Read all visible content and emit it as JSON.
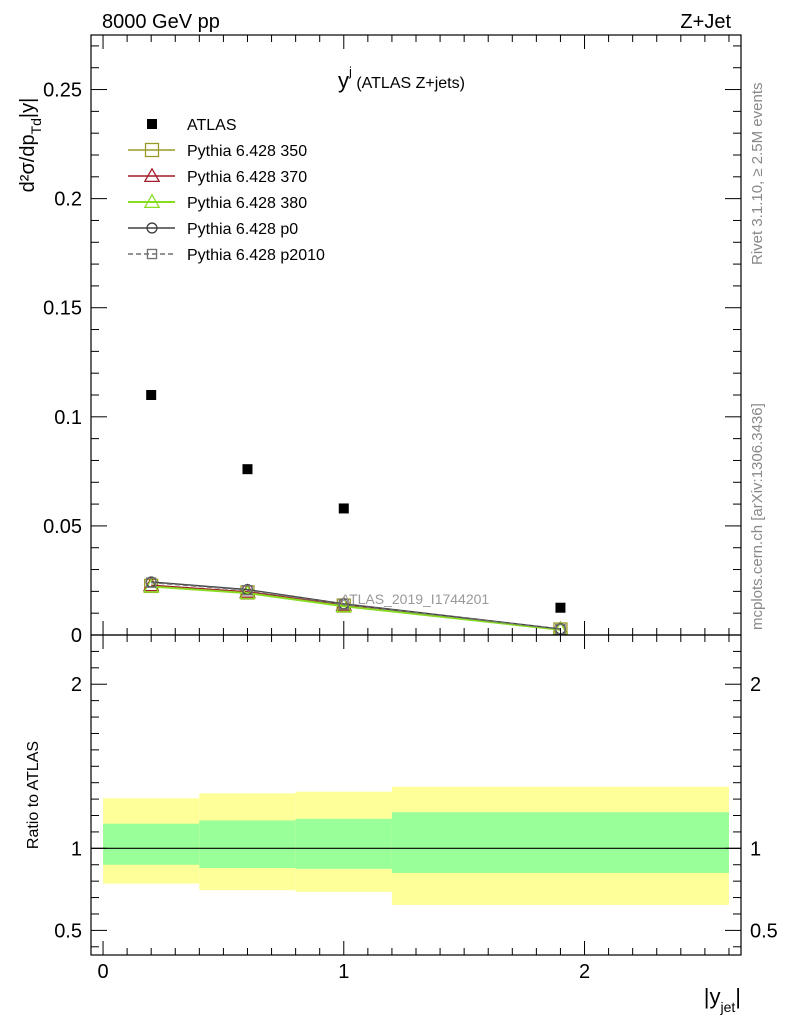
{
  "header": {
    "left": "8000 GeV pp",
    "right": "Z+Jet"
  },
  "side_labels": {
    "rivet": "Rivet 3.1.10, ≥ 2.5M events",
    "source": "mcplots.cern.ch [arXiv:1306.3436]"
  },
  "plot_title": {
    "main": "y",
    "sup": "j",
    "rest": " (ATLAS Z+jets)"
  },
  "watermark": "ATLAS_2019_I1744201",
  "axis_labels": {
    "y_main": "d²σ/dp",
    "y_sub": "Td",
    "y_tail": "|y|",
    "ratio_y": "Ratio to ATLAS",
    "x_main": "|y",
    "x_sub": "jet",
    "x_tail": "|"
  },
  "colors": {
    "data": "#000000",
    "p350": "#9a9a28",
    "p370": "#a01c28",
    "p380": "#88dd22",
    "p0": "#404040",
    "p2010": "#707070",
    "band_inner": "#99ff99",
    "band_outer": "#ffff99"
  },
  "chart_data": {
    "type": "scatter",
    "x_range": [
      -0.05,
      2.65
    ],
    "main_ylim": [
      0,
      0.275
    ],
    "ratio_ylim": [
      0.35,
      2.3
    ],
    "x_ticks": [
      0,
      1,
      2
    ],
    "x_tick_labels": [
      "0",
      "1",
      "2"
    ],
    "main_y_ticks": [
      0,
      0.05,
      0.1,
      0.15,
      0.2,
      0.25
    ],
    "main_y_tick_labels": [
      "0",
      "0.05",
      "0.1",
      "0.15",
      "0.2",
      "0.25"
    ],
    "ratio_y_ticks": [
      0.5,
      1,
      2
    ],
    "ratio_y_tick_labels": [
      "0.5",
      "1",
      "2"
    ],
    "bins": [
      {
        "lo": 0.0,
        "hi": 0.4,
        "x": 0.2
      },
      {
        "lo": 0.4,
        "hi": 0.8,
        "x": 0.6
      },
      {
        "lo": 0.8,
        "hi": 1.2,
        "x": 1.0
      },
      {
        "lo": 1.2,
        "hi": 2.6,
        "x": 1.9
      }
    ],
    "data": {
      "name": "ATLAS",
      "x": [
        0.2,
        0.6,
        1.0,
        1.9
      ],
      "y": [
        0.11,
        0.076,
        0.058,
        0.0125
      ]
    },
    "series": [
      {
        "name": "Pythia 6.428 350",
        "key": "p350",
        "marker": "square",
        "dashed": false,
        "x": [
          0.2,
          0.6,
          1.0,
          1.9
        ],
        "y": [
          0.0225,
          0.0195,
          0.0135,
          0.0025
        ]
      },
      {
        "name": "Pythia 6.428 370",
        "key": "p370",
        "marker": "triangle",
        "dashed": false,
        "x": [
          0.2,
          0.6,
          1.0,
          1.9
        ],
        "y": [
          0.0228,
          0.0198,
          0.0138,
          0.0026
        ]
      },
      {
        "name": "Pythia 6.428 380",
        "key": "p380",
        "marker": "triangle",
        "dashed": false,
        "x": [
          0.2,
          0.6,
          1.0,
          1.9
        ],
        "y": [
          0.0222,
          0.0192,
          0.0132,
          0.0024
        ]
      },
      {
        "name": "Pythia 6.428 p0",
        "key": "p0",
        "marker": "circle",
        "dashed": false,
        "x": [
          0.2,
          0.6,
          1.0,
          1.9
        ],
        "y": [
          0.0243,
          0.0208,
          0.0143,
          0.0028
        ]
      },
      {
        "name": "Pythia 6.428 p2010",
        "key": "p2010",
        "marker": "square-small",
        "dashed": true,
        "x": [
          0.2,
          0.6,
          1.0,
          1.9
        ],
        "y": [
          0.024,
          0.0205,
          0.014,
          0.0027
        ]
      }
    ],
    "ratio_bands": {
      "inner_lo": [
        0.9,
        0.88,
        0.875,
        0.85
      ],
      "inner_hi": [
        1.15,
        1.17,
        1.18,
        1.22
      ],
      "outer_lo": [
        0.785,
        0.745,
        0.735,
        0.655
      ],
      "outer_hi": [
        1.305,
        1.335,
        1.345,
        1.375
      ]
    },
    "legend_position": "top-left",
    "grid": false
  }
}
